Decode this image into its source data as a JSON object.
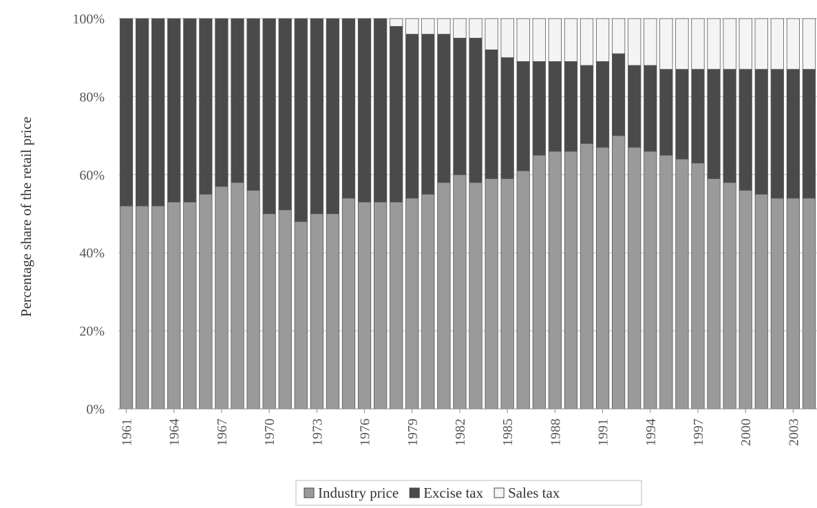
{
  "chart_data": {
    "type": "bar",
    "stacked": true,
    "normalized": true,
    "ylabel": "Percentage share of the retail price",
    "ylim": [
      0,
      100
    ],
    "yticks": [
      "0%",
      "20%",
      "40%",
      "60%",
      "80%",
      "100%"
    ],
    "x": [
      1961,
      1962,
      1963,
      1964,
      1965,
      1966,
      1967,
      1968,
      1969,
      1970,
      1971,
      1972,
      1973,
      1974,
      1975,
      1976,
      1977,
      1978,
      1979,
      1980,
      1981,
      1982,
      1983,
      1984,
      1985,
      1986,
      1987,
      1988,
      1989,
      1990,
      1991,
      1992,
      1993,
      1994,
      1995,
      1996,
      1997,
      1998,
      1999,
      2000,
      2001,
      2002,
      2003,
      2004
    ],
    "xtick_labels": [
      "1961",
      "1964",
      "1967",
      "1970",
      "1973",
      "1976",
      "1979",
      "1982",
      "1985",
      "1988",
      "1991",
      "1994",
      "1997",
      "2000",
      "2003"
    ],
    "series": [
      {
        "name": "Industry price",
        "color": "#9a9a9a",
        "values": [
          52,
          52,
          52,
          53,
          53,
          55,
          57,
          58,
          56,
          50,
          51,
          48,
          50,
          50,
          54,
          53,
          53,
          53,
          54,
          55,
          58,
          60,
          58,
          59,
          59,
          61,
          65,
          66,
          66,
          68,
          67,
          70,
          67,
          66,
          65,
          64,
          63,
          59,
          58,
          56,
          55,
          54,
          54,
          54
        ]
      },
      {
        "name": "Excise tax",
        "color": "#4a4a4a",
        "values": [
          48,
          48,
          48,
          47,
          47,
          45,
          43,
          42,
          44,
          50,
          49,
          52,
          50,
          50,
          46,
          47,
          47,
          45,
          42,
          41,
          38,
          35,
          37,
          33,
          31,
          28,
          24,
          23,
          23,
          20,
          22,
          21,
          21,
          22,
          22,
          23,
          24,
          28,
          29,
          31,
          32,
          33,
          33,
          33
        ]
      },
      {
        "name": "Sales tax",
        "color": "#f4f4f4",
        "values": [
          0,
          0,
          0,
          0,
          0,
          0,
          0,
          0,
          0,
          0,
          0,
          0,
          0,
          0,
          0,
          0,
          0,
          2,
          4,
          4,
          4,
          5,
          5,
          8,
          10,
          11,
          11,
          11,
          11,
          12,
          11,
          9,
          12,
          12,
          13,
          13,
          13,
          13,
          13,
          13,
          13,
          13,
          13,
          13
        ]
      }
    ],
    "legend": {
      "position": "bottom",
      "items": [
        "Industry price",
        "Excise tax",
        "Sales tax"
      ]
    },
    "grid": true
  }
}
